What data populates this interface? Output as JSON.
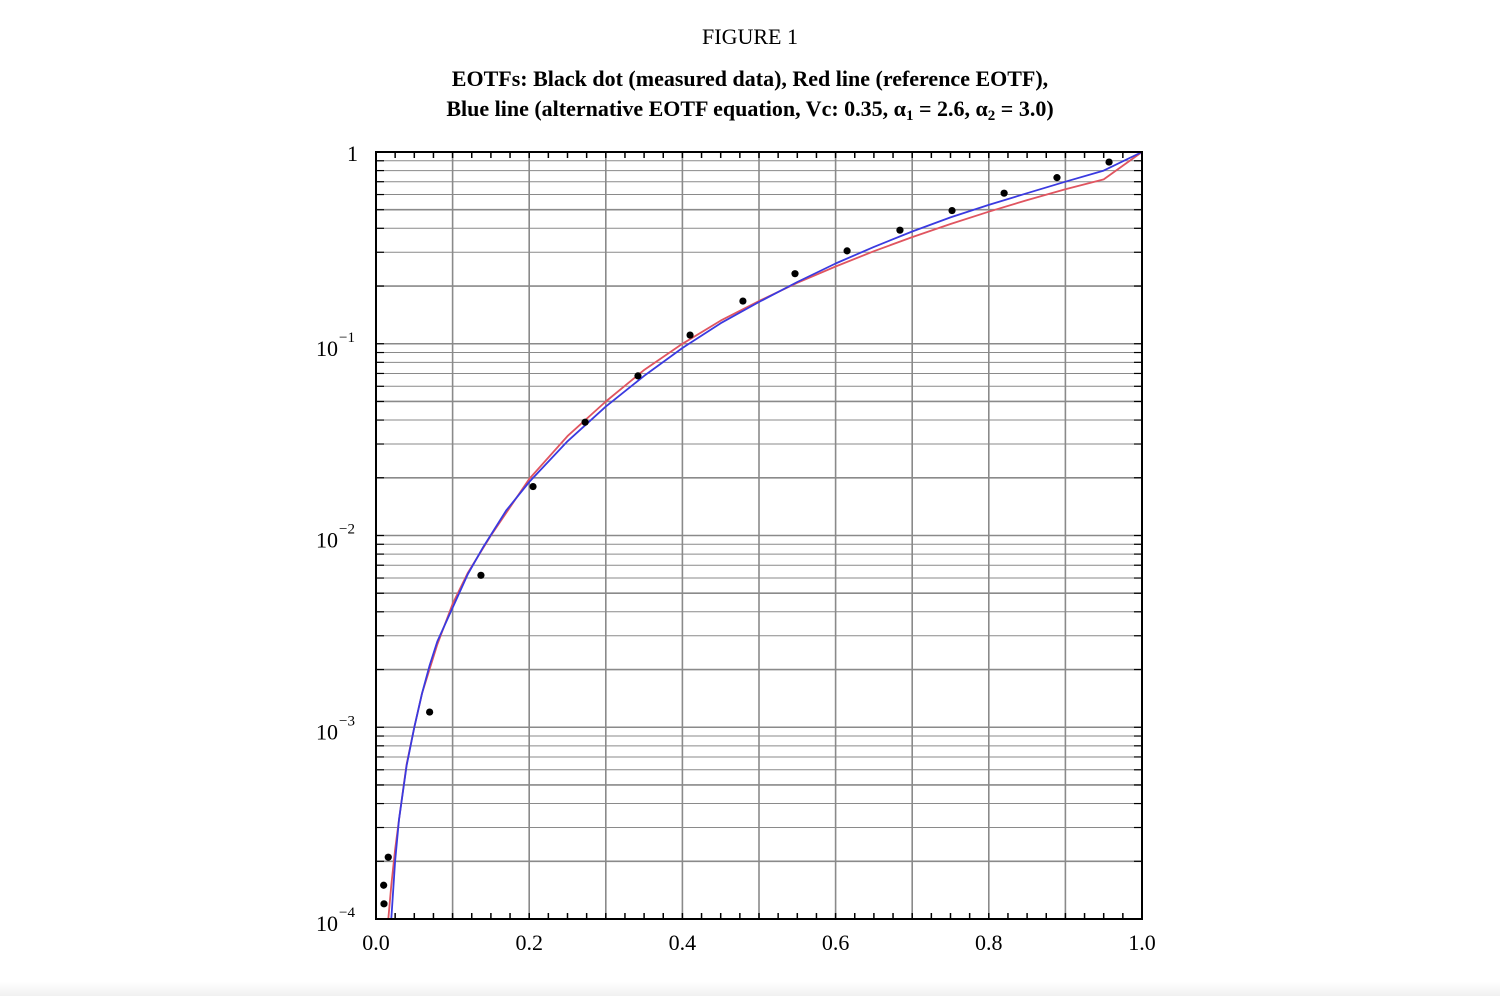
{
  "figure_label": "FIGURE 1",
  "title": {
    "line1": "EOTFs: Black dot (measured data), Red line (reference EOTF),",
    "line2_prefix": "Blue line (alternative EOTF equation, Vc: 0.35, ",
    "alpha_symbol": "α",
    "alpha1_sub": "1",
    "alpha1_value": " = 2.6, ",
    "alpha2_sub": "2",
    "alpha2_value": " = 3.0)"
  },
  "colors": {
    "reference_line": "#e05560",
    "alternative_line": "#3a3ae0",
    "measured_dots": "#000000",
    "grid": "#8a8a8a"
  },
  "chart_data": {
    "type": "line",
    "xlim": [
      0,
      1
    ],
    "ylim": [
      0.0001,
      1
    ],
    "yscale": "log",
    "grid": true,
    "x_ticks": [
      "0.0",
      "0.2",
      "0.4",
      "0.6",
      "0.8",
      "1.0"
    ],
    "y_ticks": [
      {
        "base": "10",
        "exp": "−4",
        "value": 0.0001
      },
      {
        "base": "10",
        "exp": "−3",
        "value": 0.001
      },
      {
        "base": "10",
        "exp": "−2",
        "value": 0.01
      },
      {
        "base": "10",
        "exp": "−1",
        "value": 0.1
      },
      {
        "base": "1",
        "exp": "",
        "value": 1
      }
    ],
    "series": [
      {
        "style": "line",
        "color": "#e05560",
        "x": [
          0.016,
          0.02,
          0.025,
          0.03,
          0.04,
          0.05,
          0.06,
          0.08,
          0.1,
          0.12,
          0.15,
          0.2,
          0.25,
          0.3,
          0.35,
          0.4,
          0.45,
          0.5,
          0.55,
          0.6,
          0.65,
          0.7,
          0.75,
          0.8,
          0.85,
          0.9,
          0.95,
          1.0
        ],
        "y": [
          0.0001,
          0.00015,
          0.00023,
          0.00033,
          0.00064,
          0.001,
          0.0015,
          0.0027,
          0.0044,
          0.0064,
          0.01,
          0.0197,
          0.033,
          0.05,
          0.073,
          0.1,
          0.132,
          0.167,
          0.208,
          0.253,
          0.304,
          0.36,
          0.421,
          0.488,
          0.561,
          0.64,
          0.72,
          1.0
        ]
      },
      {
        "style": "line",
        "color": "#3a3ae0",
        "x": [
          0.02,
          0.025,
          0.03,
          0.04,
          0.05,
          0.06,
          0.07,
          0.08,
          0.1,
          0.12,
          0.14,
          0.17,
          0.2,
          0.25,
          0.3,
          0.35,
          0.4,
          0.45,
          0.5,
          0.55,
          0.6,
          0.65,
          0.7,
          0.75,
          0.8,
          0.85,
          0.9,
          0.95,
          1.0
        ],
        "y": [
          0.0001,
          0.0002,
          0.00033,
          0.00063,
          0.001,
          0.0015,
          0.0021,
          0.0028,
          0.0042,
          0.0063,
          0.0087,
          0.0135,
          0.019,
          0.031,
          0.047,
          0.068,
          0.095,
          0.128,
          0.165,
          0.21,
          0.262,
          0.32,
          0.385,
          0.456,
          0.53,
          0.61,
          0.7,
          0.8,
          1.0
        ]
      },
      {
        "style": "scatter",
        "color": "#000000",
        "x": [
          0.0,
          0.01,
          0.016,
          0.07,
          0.137,
          0.205,
          0.273,
          0.342,
          0.41,
          0.479,
          0.547,
          0.615,
          0.684,
          0.752,
          0.82,
          0.889,
          0.957
        ],
        "y": [
          0.00012,
          0.00015,
          0.00021,
          0.0012,
          0.0062,
          0.018,
          0.039,
          0.068,
          0.111,
          0.167,
          0.232,
          0.305,
          0.391,
          0.495,
          0.61,
          0.735,
          0.886
        ]
      }
    ]
  }
}
